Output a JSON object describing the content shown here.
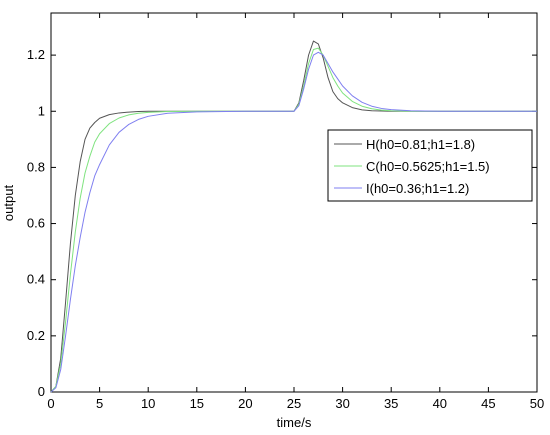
{
  "chart_data": {
    "type": "line",
    "title": "",
    "xlabel": "time/s",
    "ylabel": "output",
    "xlim": [
      0,
      50
    ],
    "ylim": [
      0,
      1.35
    ],
    "xticks": [
      0,
      5,
      10,
      15,
      20,
      25,
      30,
      35,
      40,
      45,
      50
    ],
    "yticks": [
      0,
      0.2,
      0.4,
      0.6,
      0.8,
      1,
      1.2
    ],
    "xtick_labels": [
      "0",
      "5",
      "10",
      "15",
      "20",
      "25",
      "30",
      "35",
      "40",
      "45",
      "50"
    ],
    "ytick_labels": [
      "0",
      "0.2",
      "0.4",
      "0.6",
      "0.8",
      "1",
      "1.2"
    ],
    "grid": false,
    "legend_position": "right",
    "series": [
      {
        "name": "H(h0=0.81;h1=1.8)",
        "color": "#555555",
        "x": [
          0,
          0.5,
          1,
          1.5,
          2,
          2.5,
          3,
          3.5,
          4,
          4.5,
          5,
          6,
          7,
          8,
          9,
          10,
          12,
          15,
          20,
          25,
          25.5,
          26,
          26.5,
          27,
          27.5,
          28,
          28.5,
          29,
          29.5,
          30,
          31,
          32,
          33,
          34,
          35,
          37,
          40,
          45,
          50
        ],
        "y": [
          0,
          0.02,
          0.12,
          0.32,
          0.53,
          0.7,
          0.82,
          0.9,
          0.94,
          0.96,
          0.975,
          0.988,
          0.994,
          0.997,
          0.999,
          1.0,
          1.0,
          1.0,
          1.0,
          1.0,
          1.03,
          1.11,
          1.2,
          1.25,
          1.24,
          1.19,
          1.12,
          1.07,
          1.045,
          1.03,
          1.013,
          1.005,
          1.002,
          1.001,
          1.0,
          1.0,
          1.0,
          1.0,
          1.0
        ]
      },
      {
        "name": "C(h0=0.5625;h1=1.5)",
        "color": "#7fe37f",
        "x": [
          0,
          0.5,
          1,
          1.5,
          2,
          2.5,
          3,
          3.5,
          4,
          4.5,
          5,
          6,
          7,
          8,
          9,
          10,
          12,
          15,
          20,
          25,
          25.5,
          26,
          26.5,
          27,
          27.5,
          28,
          28.5,
          29,
          29.5,
          30,
          31,
          32,
          33,
          34,
          35,
          37,
          40,
          45,
          50
        ],
        "y": [
          0,
          0.02,
          0.1,
          0.25,
          0.42,
          0.57,
          0.69,
          0.78,
          0.84,
          0.89,
          0.92,
          0.956,
          0.976,
          0.987,
          0.993,
          0.996,
          0.999,
          1.0,
          1.0,
          1.0,
          1.025,
          1.09,
          1.17,
          1.22,
          1.225,
          1.2,
          1.16,
          1.12,
          1.09,
          1.065,
          1.035,
          1.018,
          1.009,
          1.004,
          1.002,
          1.0,
          1.0,
          1.0,
          1.0
        ]
      },
      {
        "name": "I(h0=0.36;h1=1.2)",
        "color": "#7f7ff0",
        "x": [
          0,
          0.5,
          1,
          1.5,
          2,
          2.5,
          3,
          3.5,
          4,
          4.5,
          5,
          6,
          7,
          8,
          9,
          10,
          12,
          15,
          20,
          25,
          25.5,
          26,
          26.5,
          27,
          27.5,
          28,
          28.5,
          29,
          29.5,
          30,
          31,
          32,
          33,
          34,
          35,
          37,
          40,
          45,
          50
        ],
        "y": [
          0,
          0.015,
          0.08,
          0.2,
          0.33,
          0.45,
          0.55,
          0.64,
          0.71,
          0.77,
          0.81,
          0.88,
          0.925,
          0.953,
          0.971,
          0.982,
          0.993,
          0.998,
          1.0,
          1.0,
          1.02,
          1.08,
          1.15,
          1.2,
          1.21,
          1.2,
          1.17,
          1.14,
          1.115,
          1.09,
          1.055,
          1.032,
          1.018,
          1.01,
          1.006,
          1.002,
          1.0,
          1.0,
          1.0
        ]
      }
    ]
  }
}
